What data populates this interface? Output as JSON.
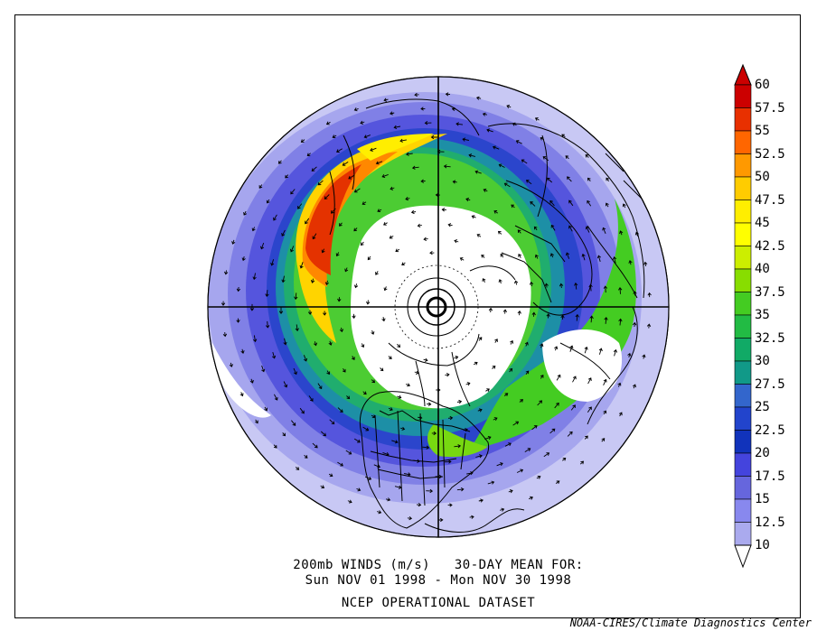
{
  "caption": {
    "line1": "200mb WINDS (m/s)   30-DAY MEAN FOR:",
    "line2": "Sun NOV 01 1998 - Mon NOV 30 1998",
    "line3": "NCEP OPERATIONAL DATASET"
  },
  "credit": "NOAA-CIRES/Climate Diagnostics Center",
  "colorbar": {
    "levels": [
      "60",
      "57.5",
      "55",
      "52.5",
      "50",
      "47.5",
      "45",
      "42.5",
      "40",
      "37.5",
      "35",
      "32.5",
      "30",
      "27.5",
      "25",
      "22.5",
      "20",
      "17.5",
      "15",
      "12.5",
      "10"
    ],
    "colors": [
      "#cc0000",
      "#e83000",
      "#ff6600",
      "#ff9900",
      "#ffcc00",
      "#ffee00",
      "#ffff00",
      "#ccee00",
      "#88dd00",
      "#44cc22",
      "#22bb44",
      "#11aa66",
      "#119988",
      "#3366cc",
      "#2244cc",
      "#1133bb",
      "#4444dd",
      "#6666dd",
      "#8888ee",
      "#aaaaee",
      "#ffffff"
    ]
  }
}
